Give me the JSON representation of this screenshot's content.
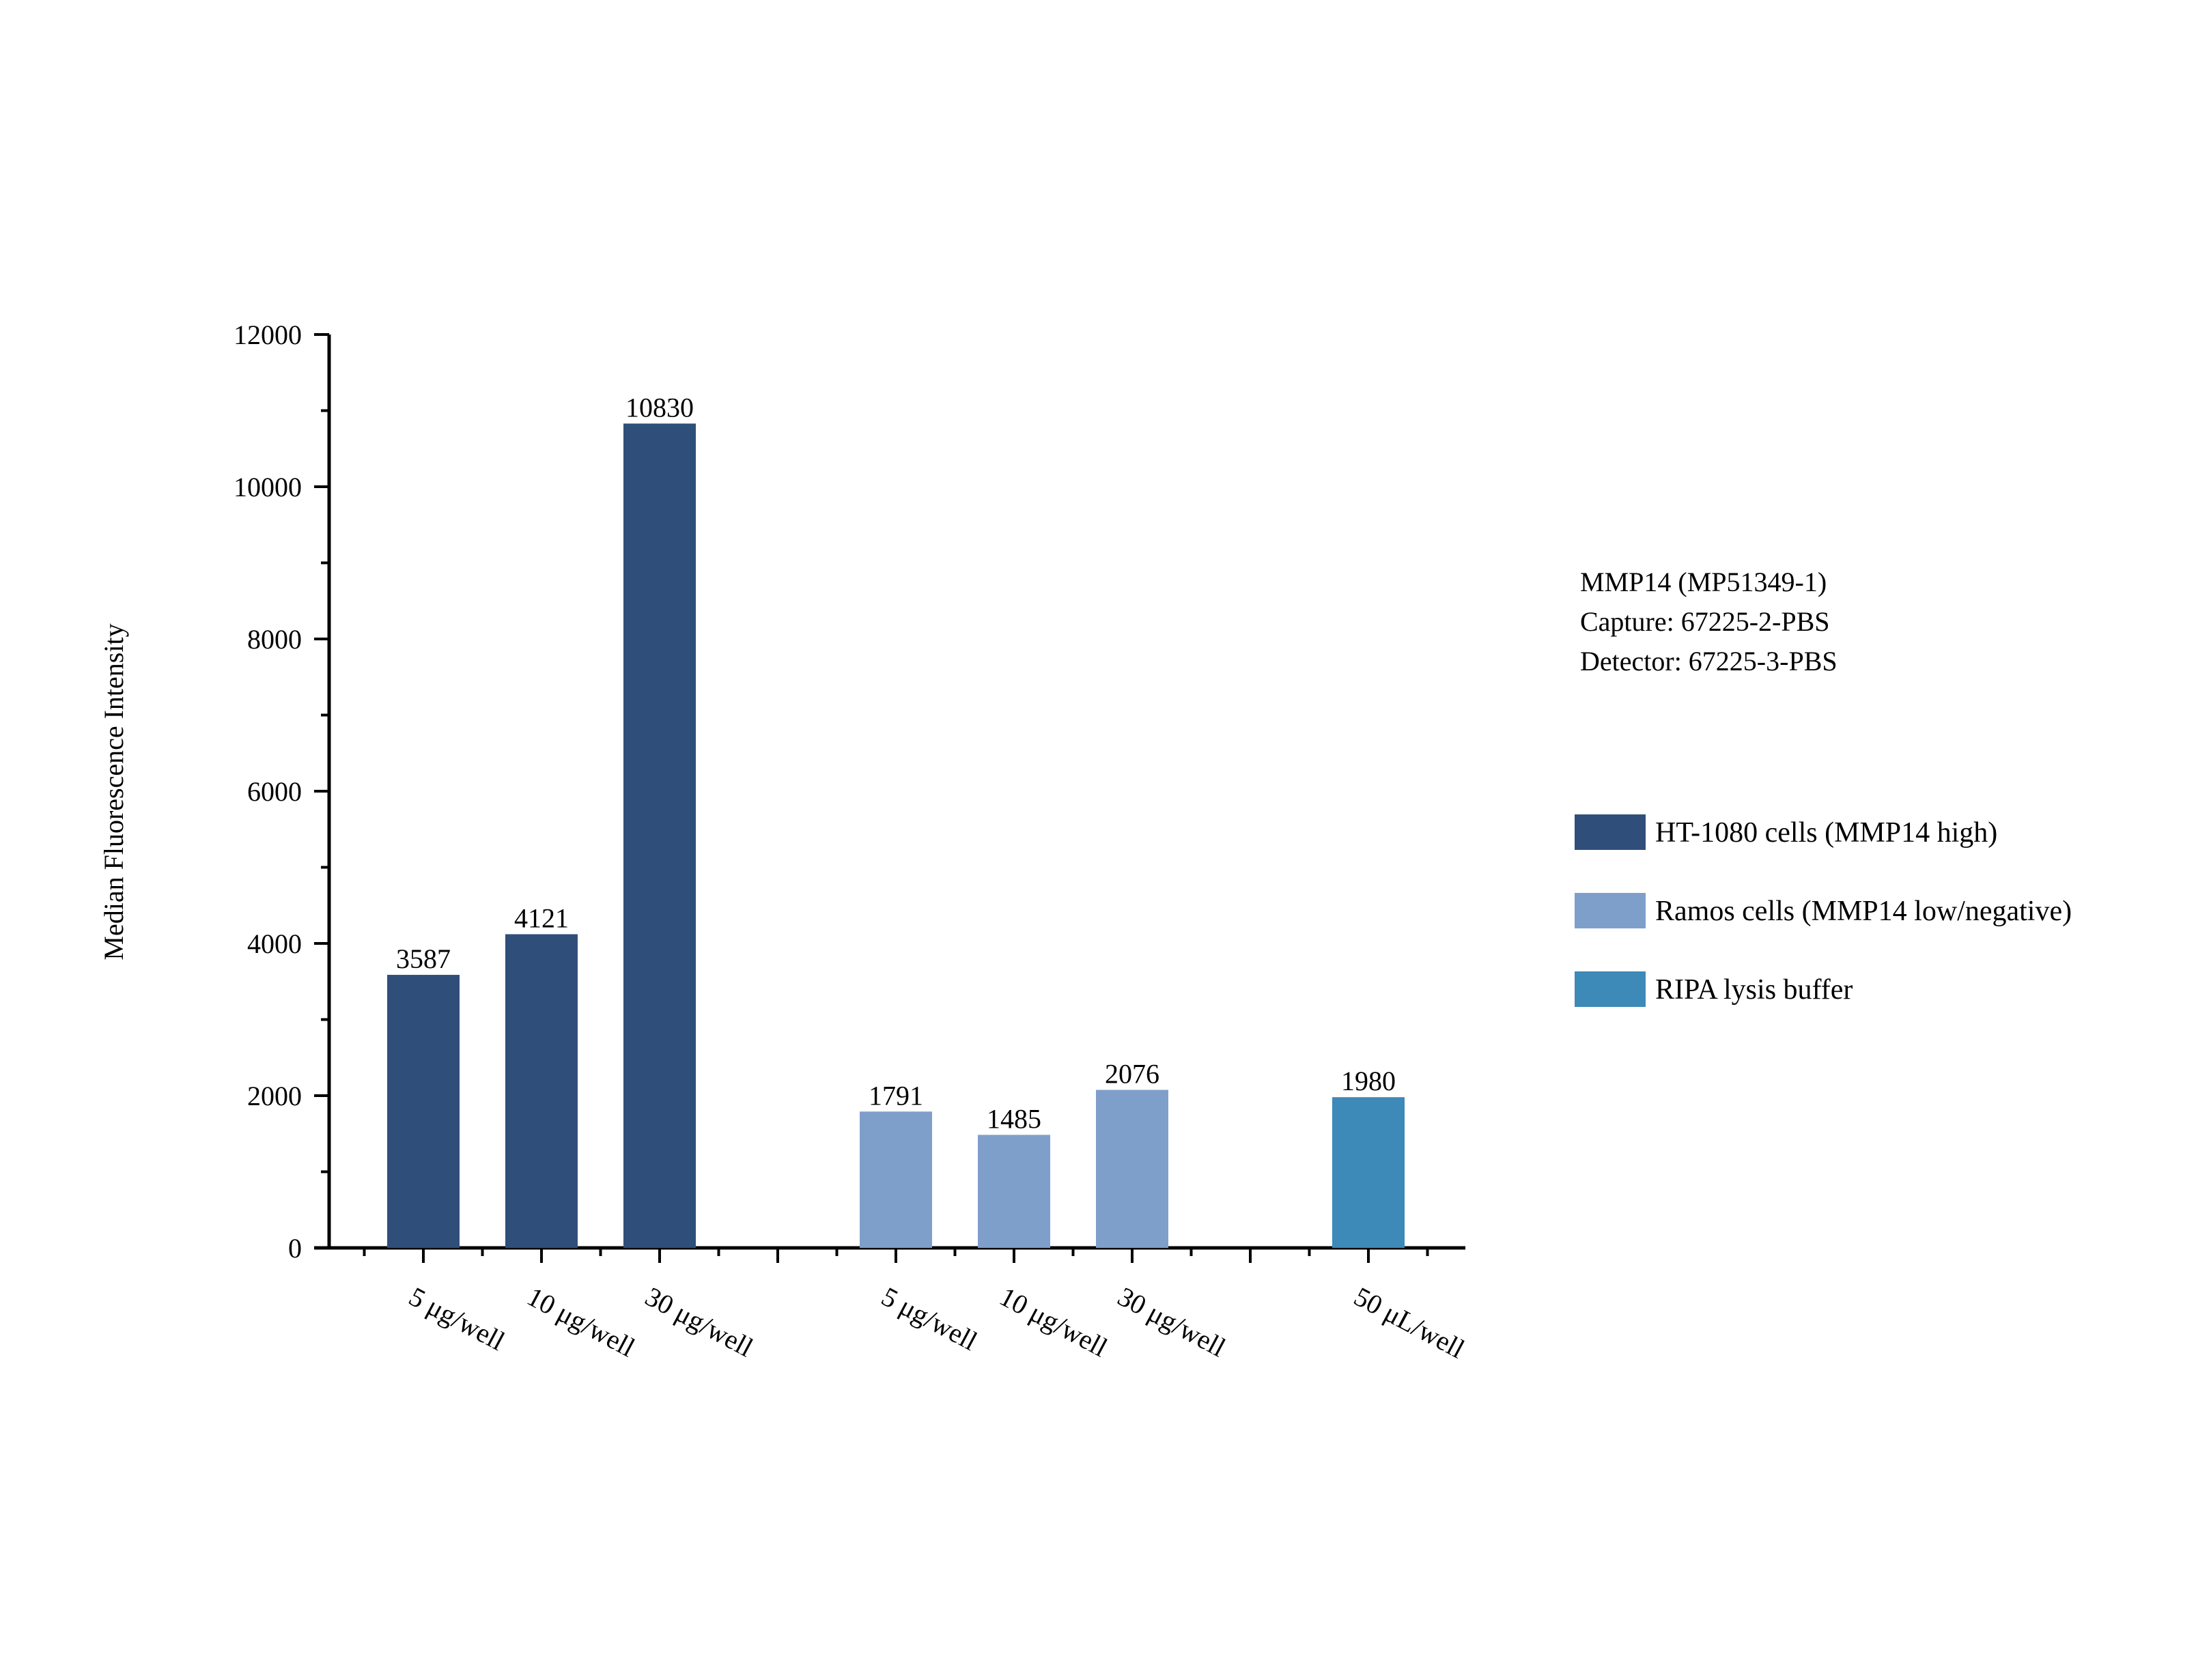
{
  "chart_data": {
    "type": "bar",
    "title": "",
    "xlabel": "",
    "ylabel": "Median Fluorescence Intensity",
    "ylim": [
      0,
      12000
    ],
    "yticks": [
      0,
      2000,
      4000,
      6000,
      8000,
      10000,
      12000
    ],
    "grid": false,
    "legend_position": "right",
    "annotation_lines": [
      "MMP14 (MP51349-1)",
      "Capture: 67225-2-PBS",
      "Detector: 67225-3-PBS"
    ],
    "series": [
      {
        "name": "HT-1080 cells (MMP14 high)",
        "color": "#2f4f7a",
        "categories": [
          "5 μg/well",
          "10 μg/well",
          "30 μg/well"
        ],
        "values": [
          3587,
          4121,
          10830
        ]
      },
      {
        "name": "Ramos cells (MMP14 low/negative)",
        "color": "#7f9fcb",
        "categories": [
          "5 μg/well",
          "10 μg/well",
          "30 μg/well"
        ],
        "values": [
          1791,
          1485,
          2076
        ]
      },
      {
        "name": "RIPA lysis buffer",
        "color": "#3d89b8",
        "categories": [
          "50 μL/well"
        ],
        "values": [
          1980
        ]
      }
    ]
  }
}
